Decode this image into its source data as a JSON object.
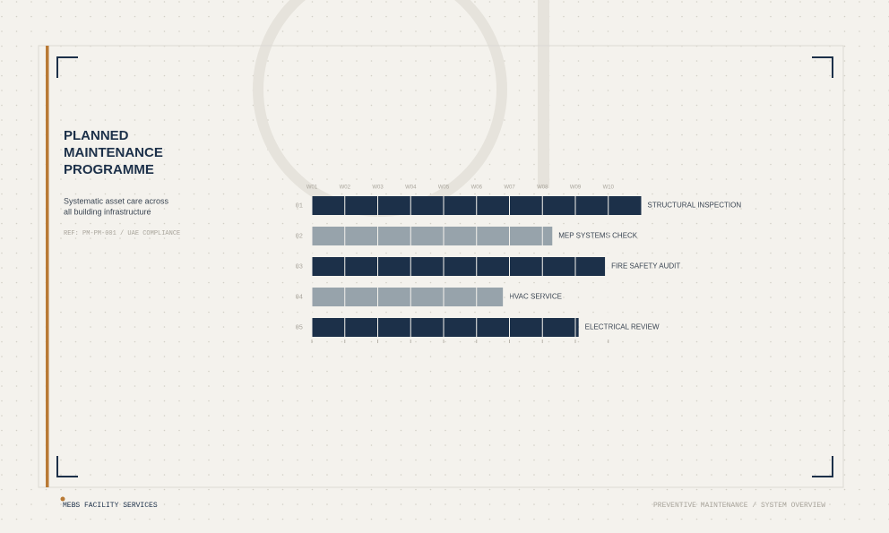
{
  "header": {
    "title_lines": [
      "PLANNED",
      "MAINTENANCE",
      "PROGRAMME"
    ],
    "subtitle_lines": [
      "Systematic asset care across",
      "all building infrastructure"
    ],
    "reference": "REF: PM-PM-001 / UAE COMPLIANCE"
  },
  "footer": {
    "left": "MEBS FACILITY SERVICES",
    "right": "PREVENTIVE MAINTENANCE / SYSTEM OVERVIEW"
  },
  "chart_data": {
    "type": "hbar",
    "categories": [
      "01",
      "02",
      "03",
      "04",
      "05"
    ],
    "labels": [
      "STRUCTURAL INSPECTION",
      "MEP SYSTEMS CHECK",
      "FIRE SAFETY AUDIT",
      "HVAC SERVICE",
      "ELECTRICAL REVIEW"
    ],
    "values": [
      10,
      7.3,
      8.9,
      5.8,
      8.1
    ],
    "colors": [
      "#1c3049",
      "#97a3ab",
      "#1c3049",
      "#97a3ab",
      "#1c3049"
    ],
    "xlim": [
      0,
      10
    ],
    "xticks": [
      {
        "value": 0,
        "label": "W01"
      },
      {
        "value": 1,
        "label": "W02"
      },
      {
        "value": 2,
        "label": "W03"
      },
      {
        "value": 3,
        "label": "W04"
      },
      {
        "value": 4,
        "label": "W05"
      },
      {
        "value": 5,
        "label": "W06"
      },
      {
        "value": 6,
        "label": "W07"
      },
      {
        "value": 7,
        "label": "W08"
      },
      {
        "value": 8,
        "label": "W09"
      },
      {
        "value": 9,
        "label": "W10"
      }
    ],
    "grid": true
  }
}
